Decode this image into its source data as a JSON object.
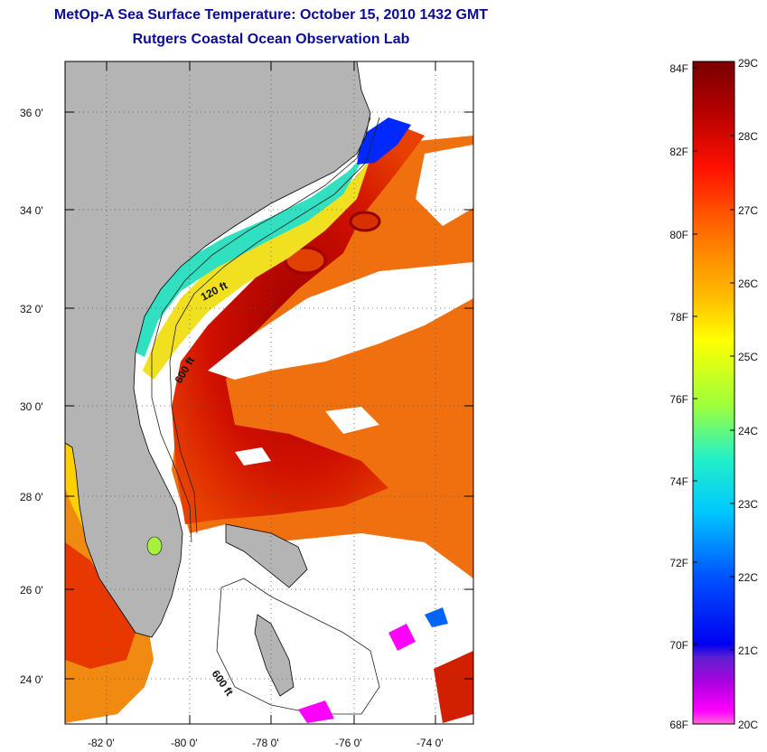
{
  "title": {
    "line1": "MetOp-A Sea Surface Temperature:  October 15, 2010 1432 GMT",
    "line2": "Rutgers Coastal Ocean Observation Lab"
  },
  "map": {
    "lat_ticks": [
      {
        "label": "36 0'",
        "value": 36
      },
      {
        "label": "34 0'",
        "value": 34
      },
      {
        "label": "32 0'",
        "value": 32
      },
      {
        "label": "30 0'",
        "value": 30
      },
      {
        "label": "28 0'",
        "value": 28
      },
      {
        "label": "26 0'",
        "value": 26
      },
      {
        "label": "24 0'",
        "value": 24
      }
    ],
    "lon_ticks": [
      {
        "label": "-82 0'",
        "value": -82
      },
      {
        "label": "-80 0'",
        "value": -80
      },
      {
        "label": "-78 0'",
        "value": -78
      },
      {
        "label": "-76 0'",
        "value": -76
      },
      {
        "label": "-74 0'",
        "value": -74
      }
    ],
    "lat_range": [
      23,
      37.2
    ],
    "lon_range": [
      -83,
      -73
    ],
    "contour_labels": [
      "120 ft",
      "600 ft",
      "600 ft"
    ],
    "land_color": "#b4b4b4"
  },
  "colorbar": {
    "fahrenheit": [
      "84F",
      "82F",
      "80F",
      "78F",
      "76F",
      "74F",
      "72F",
      "70F",
      "68F"
    ],
    "celsius": [
      "29C",
      "28C",
      "27C",
      "26C",
      "25C",
      "24C",
      "23C",
      "22C",
      "21C",
      "20C"
    ],
    "colors": [
      "#7a0000",
      "#c80000",
      "#ff1a00",
      "#ff7a00",
      "#ffd000",
      "#ffff00",
      "#9cff3c",
      "#28f0c8",
      "#00c8ff",
      "#0064ff",
      "#0000ff",
      "#8000c0",
      "#ff00ff",
      "#ff66dd"
    ]
  }
}
